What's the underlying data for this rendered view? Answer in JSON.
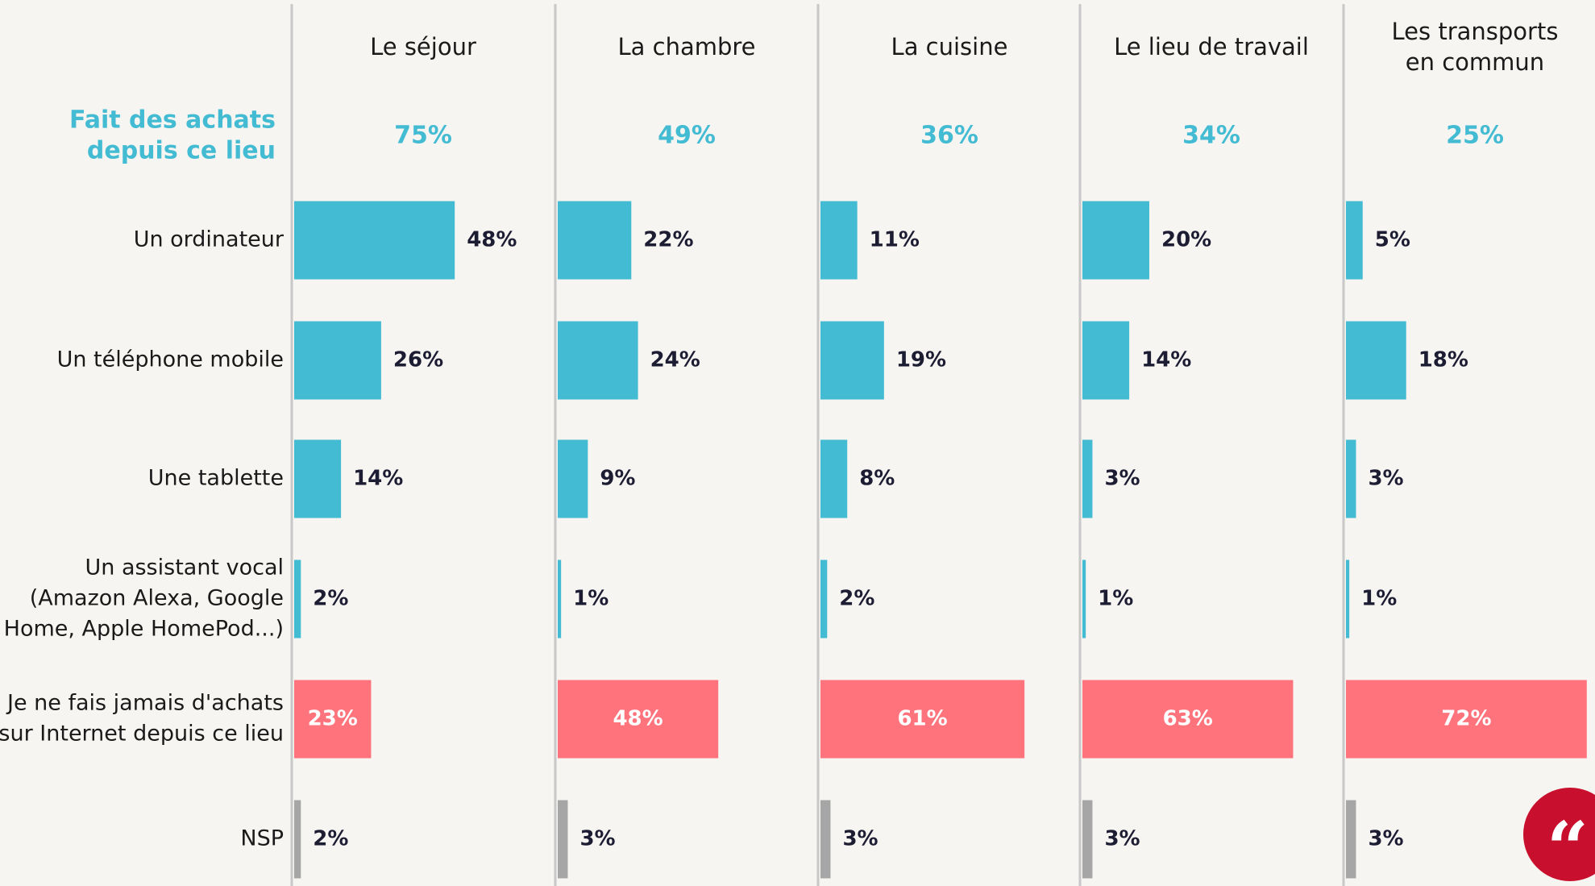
{
  "chart_data": {
    "type": "bar",
    "orientation": "horizontal",
    "row_header": [
      "Fait des achats",
      "depuis ce lieu"
    ],
    "categories": [
      [
        "Un ordinateur"
      ],
      [
        "Un téléphone mobile"
      ],
      [
        "Une tablette"
      ],
      [
        "Un assistant vocal",
        "(Amazon Alexa, Google",
        "Home, Apple HomePod...)"
      ],
      [
        "Je ne fais jamais d'achats",
        "sur Internet depuis ce lieu"
      ],
      [
        "NSP"
      ]
    ],
    "colors": [
      "#43bbd3",
      "#43bbd3",
      "#43bbd3",
      "#43bbd3",
      "#ff737c",
      "#a6a6a6"
    ],
    "total_color": "#43bbd3",
    "panels": [
      {
        "name": [
          "Le séjour"
        ],
        "total": 75,
        "total_label": "75%",
        "values": [
          48,
          26,
          14,
          2,
          23,
          2
        ],
        "value_labels": [
          "48%",
          "26%",
          "14%",
          "2%",
          "23%",
          "2%"
        ]
      },
      {
        "name": [
          "La chambre"
        ],
        "total": 49,
        "total_label": "49%",
        "values": [
          22,
          24,
          9,
          1,
          48,
          3
        ],
        "value_labels": [
          "22%",
          "24%",
          "9%",
          "1%",
          "48%",
          "3%"
        ]
      },
      {
        "name": [
          "La cuisine"
        ],
        "total": 36,
        "total_label": "36%",
        "values": [
          11,
          19,
          8,
          2,
          61,
          3
        ],
        "value_labels": [
          "11%",
          "19%",
          "8%",
          "2%",
          "61%",
          "3%"
        ]
      },
      {
        "name": [
          "Le lieu de travail"
        ],
        "total": 34,
        "total_label": "34%",
        "values": [
          20,
          14,
          3,
          1,
          63,
          3
        ],
        "value_labels": [
          "20%",
          "14%",
          "3%",
          "1%",
          "63%",
          "3%"
        ]
      },
      {
        "name": [
          "Les transports",
          "en commun"
        ],
        "total": 25,
        "total_label": "25%",
        "values": [
          5,
          18,
          3,
          1,
          72,
          3
        ],
        "value_labels": [
          "5%",
          "18%",
          "3%",
          "1%",
          "72%",
          "3%"
        ]
      }
    ]
  }
}
